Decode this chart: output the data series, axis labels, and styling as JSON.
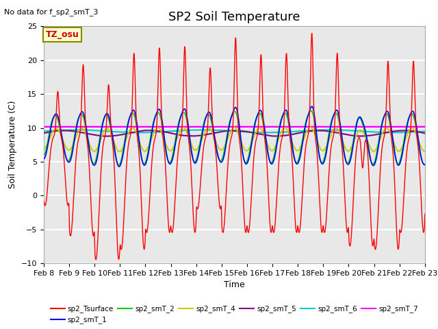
{
  "title": "SP2 Soil Temperature",
  "ylabel": "Soil Temperature (C)",
  "xlabel": "Time",
  "note": "No data for f_sp2_smT_3",
  "tz_label": "TZ_osu",
  "ylim": [
    -10,
    25
  ],
  "yticks": [
    -10,
    -5,
    0,
    5,
    10,
    15,
    20,
    25
  ],
  "xtick_labels": [
    "Feb 8",
    "Feb 9",
    "Feb 10",
    "Feb 11",
    "Feb 12",
    "Feb 13",
    "Feb 14",
    "Feb 15",
    "Feb 16",
    "Feb 17",
    "Feb 18",
    "Feb 19",
    "Feb 20",
    "Feb 21",
    "Feb 22",
    "Feb 23"
  ],
  "series_colors": {
    "sp2_Tsurface": "#ff0000",
    "sp2_smT_1": "#0000ff",
    "sp2_smT_2": "#00cc00",
    "sp2_smT_4": "#cccc00",
    "sp2_smT_5": "#880088",
    "sp2_smT_6": "#00cccc",
    "sp2_smT_7": "#ff00ff"
  },
  "legend_entries": [
    {
      "label": "sp2_Tsurface",
      "color": "#ff0000"
    },
    {
      "label": "sp2_smT_1",
      "color": "#0000ff"
    },
    {
      "label": "sp2_smT_2",
      "color": "#00cc00"
    },
    {
      "label": "sp2_smT_4",
      "color": "#cccc00"
    },
    {
      "label": "sp2_smT_5",
      "color": "#880088"
    },
    {
      "label": "sp2_smT_6",
      "color": "#00cccc"
    },
    {
      "label": "sp2_smT_7",
      "color": "#ff00ff"
    }
  ],
  "background_color": "#ffffff",
  "plot_bg_color": "#e8e8e8",
  "title_fontsize": 13,
  "label_fontsize": 9,
  "tick_fontsize": 8
}
